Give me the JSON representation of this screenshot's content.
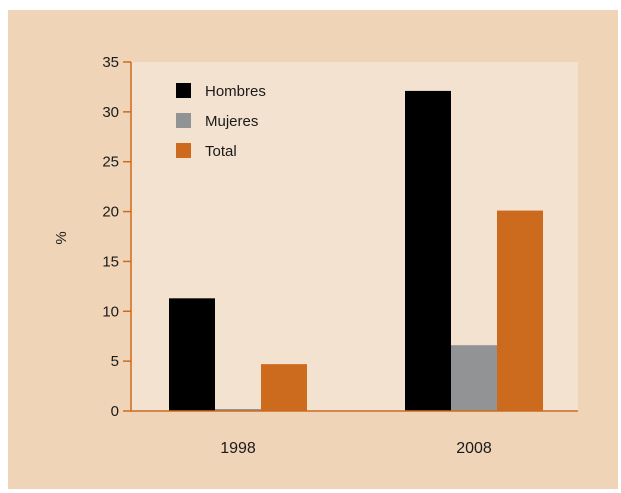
{
  "chart_data": {
    "type": "bar",
    "title": "",
    "xlabel": "",
    "ylabel": "%",
    "ylim": [
      0,
      35
    ],
    "yticks": [
      0,
      5,
      10,
      15,
      20,
      25,
      30,
      35
    ],
    "categories": [
      "1998",
      "2008"
    ],
    "series": [
      {
        "name": "Hombres",
        "color": "#000000",
        "values": [
          11.3,
          32.1
        ]
      },
      {
        "name": "Mujeres",
        "color": "#929395",
        "values": [
          0.2,
          6.6
        ]
      },
      {
        "name": "Total",
        "color": "#cc6b1e",
        "values": [
          4.7,
          20.1
        ]
      }
    ],
    "legend": "top-left",
    "grid": false
  },
  "colors": {
    "background": "#f0d4b8",
    "plot_area": "#f4e2d0",
    "axis": "#cc6b1e"
  }
}
